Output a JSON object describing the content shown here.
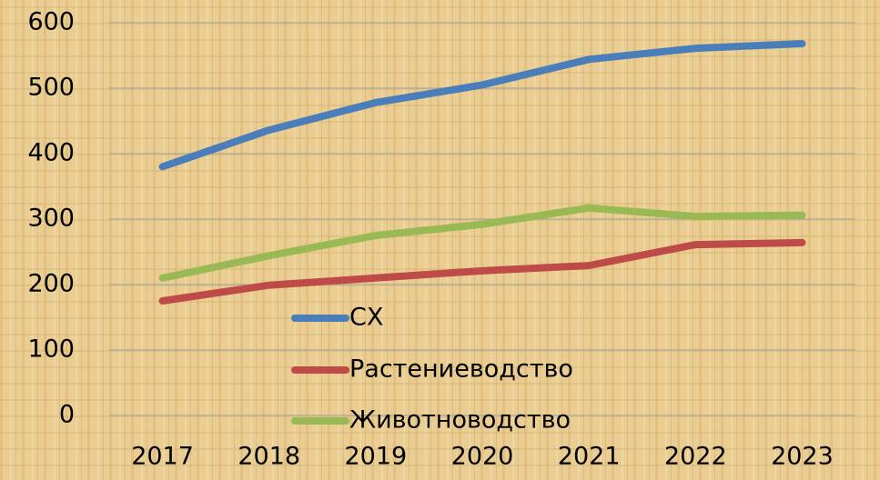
{
  "chart_data": {
    "type": "line",
    "categories": [
      "2017",
      "2018",
      "2019",
      "2020",
      "2021",
      "2022",
      "2023"
    ],
    "series": [
      {
        "name": "СХ",
        "color": "#4a7ebb",
        "values": [
          380,
          436,
          478,
          505,
          544,
          561,
          568
        ]
      },
      {
        "name": "Растениеводство",
        "color": "#be4b48",
        "values": [
          175,
          199,
          210,
          221,
          229,
          261,
          264
        ]
      },
      {
        "name": "Животноводство",
        "color": "#98b954",
        "values": [
          210,
          244,
          275,
          292,
          317,
          304,
          306
        ]
      }
    ],
    "ylim": [
      0,
      600
    ],
    "yticks": [
      0,
      100,
      200,
      300,
      400,
      500,
      600
    ],
    "grid": true,
    "legend": "bottom"
  }
}
